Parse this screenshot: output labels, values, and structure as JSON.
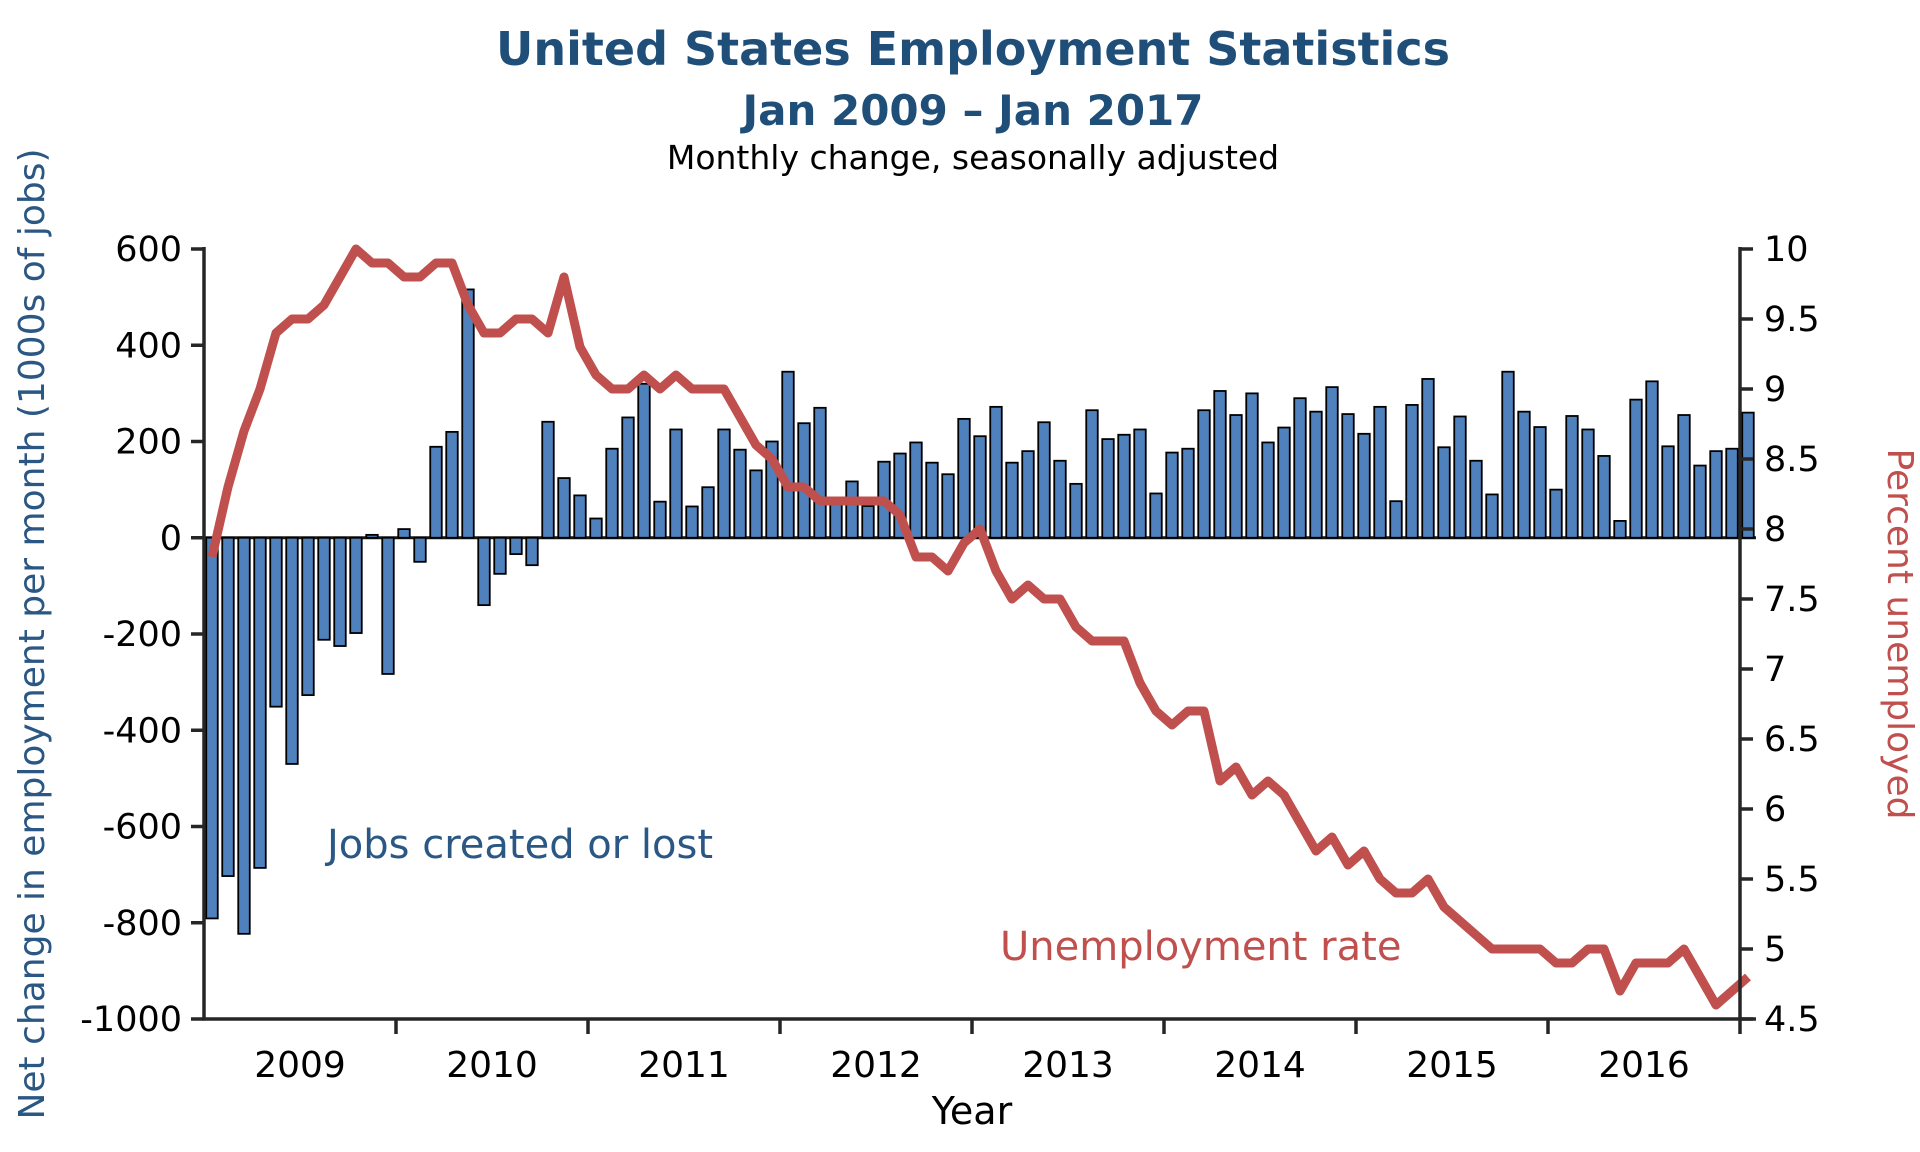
{
  "header": {
    "title": "United States Employment Statistics",
    "subtitle": "Jan 2009 – Jan 2017",
    "note": "Monthly change, seasonally adjusted"
  },
  "colors": {
    "bar_fill": "#4f81bd",
    "bar_edge": "#000000",
    "line_red": "#c0504d",
    "title_blue": "#1f4e79",
    "annotation_blue": "#2a5783",
    "axis_color": "#262626"
  },
  "chart_data": {
    "type": "bar",
    "title": "United States Employment Statistics",
    "subtitle": "Jan 2009 – Jan 2017",
    "note": "Monthly change, seasonally adjusted",
    "xlabel": "Year",
    "ylabel_left": "Net change in employment per month (1000s of jobs)",
    "ylabel_right": "Percent unemployed",
    "ylim_left": [
      -1000,
      600
    ],
    "ylim_right": [
      4.5,
      10
    ],
    "left_ticks": [
      "600",
      "400",
      "200",
      "0",
      "-200",
      "-400",
      "-600",
      "-800",
      "-1000"
    ],
    "left_tick_values": [
      600,
      400,
      200,
      0,
      -200,
      -400,
      -600,
      -800,
      -1000
    ],
    "right_ticks": [
      "10",
      "9.5",
      "9",
      "8.5",
      "8",
      "7.5",
      "7",
      "6.5",
      "6",
      "5.5",
      "5",
      "4.5"
    ],
    "right_tick_values": [
      10,
      9.5,
      9,
      8.5,
      8,
      7.5,
      7,
      6.5,
      6,
      5.5,
      5,
      4.5
    ],
    "year_labels": [
      "2009",
      "2010",
      "2011",
      "2012",
      "2013",
      "2014",
      "2015",
      "2016"
    ],
    "annotations": [
      {
        "text": "Jobs created or lost",
        "color": "#2a5783"
      },
      {
        "text": "Unemployment rate",
        "color": "#c0504d"
      }
    ],
    "months": [
      "2009-01",
      "2009-02",
      "2009-03",
      "2009-04",
      "2009-05",
      "2009-06",
      "2009-07",
      "2009-08",
      "2009-09",
      "2009-10",
      "2009-11",
      "2009-12",
      "2010-01",
      "2010-02",
      "2010-03",
      "2010-04",
      "2010-05",
      "2010-06",
      "2010-07",
      "2010-08",
      "2010-09",
      "2010-10",
      "2010-11",
      "2010-12",
      "2011-01",
      "2011-02",
      "2011-03",
      "2011-04",
      "2011-05",
      "2011-06",
      "2011-07",
      "2011-08",
      "2011-09",
      "2011-10",
      "2011-11",
      "2011-12",
      "2012-01",
      "2012-02",
      "2012-03",
      "2012-04",
      "2012-05",
      "2012-06",
      "2012-07",
      "2012-08",
      "2012-09",
      "2012-10",
      "2012-11",
      "2012-12",
      "2013-01",
      "2013-02",
      "2013-03",
      "2013-04",
      "2013-05",
      "2013-06",
      "2013-07",
      "2013-08",
      "2013-09",
      "2013-10",
      "2013-11",
      "2013-12",
      "2014-01",
      "2014-02",
      "2014-03",
      "2014-04",
      "2014-05",
      "2014-06",
      "2014-07",
      "2014-08",
      "2014-09",
      "2014-10",
      "2014-11",
      "2014-12",
      "2015-01",
      "2015-02",
      "2015-03",
      "2015-04",
      "2015-05",
      "2015-06",
      "2015-07",
      "2015-08",
      "2015-09",
      "2015-10",
      "2015-11",
      "2015-12",
      "2016-01",
      "2016-02",
      "2016-03",
      "2016-04",
      "2016-05",
      "2016-06",
      "2016-07",
      "2016-08",
      "2016-09",
      "2016-10",
      "2016-11",
      "2016-12",
      "2017-01"
    ],
    "series": [
      {
        "name": "Jobs created or lost",
        "axis": "left",
        "units": "thousands of jobs",
        "values": [
          -791,
          -703,
          -823,
          -686,
          -351,
          -470,
          -327,
          -212,
          -225,
          -198,
          6,
          -283,
          18,
          -50,
          189,
          220,
          516,
          -140,
          -75,
          -34,
          -57,
          241,
          124,
          88,
          40,
          185,
          250,
          320,
          75,
          225,
          65,
          105,
          225,
          183,
          140,
          200,
          345,
          238,
          270,
          71,
          117,
          66,
          158,
          175,
          198,
          156,
          132,
          247,
          211,
          272,
          156,
          180,
          240,
          160,
          112,
          265,
          205,
          214,
          225,
          92,
          177,
          185,
          265,
          305,
          255,
          300,
          198,
          229,
          290,
          262,
          313,
          257,
          216,
          272,
          76,
          276,
          330,
          188,
          252,
          160,
          90,
          345,
          262,
          230,
          100,
          253,
          225,
          170,
          35,
          287,
          325,
          190,
          255,
          150,
          180,
          185,
          260
        ]
      },
      {
        "name": "Unemployment rate",
        "axis": "right",
        "units": "percent",
        "values": [
          7.8,
          8.3,
          8.7,
          9.0,
          9.4,
          9.5,
          9.5,
          9.6,
          9.8,
          10.0,
          9.9,
          9.9,
          9.8,
          9.8,
          9.9,
          9.9,
          9.6,
          9.4,
          9.4,
          9.5,
          9.5,
          9.4,
          9.8,
          9.3,
          9.1,
          9.0,
          9.0,
          9.1,
          9.0,
          9.1,
          9.0,
          9.0,
          9.0,
          8.8,
          8.6,
          8.5,
          8.3,
          8.3,
          8.2,
          8.2,
          8.2,
          8.2,
          8.2,
          8.1,
          7.8,
          7.8,
          7.7,
          7.9,
          8.0,
          7.7,
          7.5,
          7.6,
          7.5,
          7.5,
          7.3,
          7.2,
          7.2,
          7.2,
          6.9,
          6.7,
          6.6,
          6.7,
          6.7,
          6.2,
          6.3,
          6.1,
          6.2,
          6.1,
          5.9,
          5.7,
          5.8,
          5.6,
          5.7,
          5.5,
          5.4,
          5.4,
          5.5,
          5.3,
          5.2,
          5.1,
          5.0,
          5.0,
          5.0,
          5.0,
          4.9,
          4.9,
          5.0,
          5.0,
          4.7,
          4.9,
          4.9,
          4.9,
          5.0,
          4.8,
          4.6,
          4.7,
          4.8
        ]
      }
    ]
  }
}
